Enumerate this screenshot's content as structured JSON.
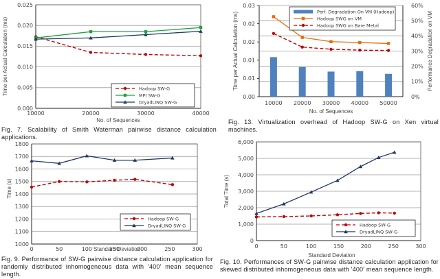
{
  "chart_data": [
    {
      "id": "fig7",
      "type": "line",
      "title": "",
      "xlabel": "No. of Sequences",
      "ylabel": "Time per Actual Calculation (ms)",
      "x": [
        10000,
        20000,
        30000,
        40000
      ],
      "xlim": [
        10000,
        40000
      ],
      "ylim": [
        0,
        0.025
      ],
      "yticks": [
        "0.000",
        "0.005",
        "0.010",
        "0.015",
        "0.020",
        "0.025"
      ],
      "xticks": [
        "10000",
        "20000",
        "30000",
        "40000"
      ],
      "grid": true,
      "legend_position": "bottom-right",
      "series": [
        {
          "name": "Hadoop SW-G",
          "values": [
            0.0173,
            0.0135,
            0.013,
            0.0127
          ],
          "color": "#c00000",
          "dash": true,
          "marker": "circle"
        },
        {
          "name": "MPI SW-G",
          "values": [
            0.017,
            0.0185,
            0.0185,
            0.0195
          ],
          "color": "#1aa33a",
          "dash": false,
          "marker": "square"
        },
        {
          "name": "DryadLINQ SW-G",
          "values": [
            0.0167,
            0.017,
            0.0178,
            0.0186
          ],
          "color": "#1f3864",
          "dash": false,
          "marker": "triangle"
        }
      ],
      "caption": "Fig. 7. Scalability of Smith Waterman pairwise distance calculation applications."
    },
    {
      "id": "fig13",
      "type": "bar",
      "title": "",
      "xlabel": "No. of Sequences",
      "ylabel": "Time per Actual Calculation (ms)",
      "y2label": "Performance Degradation on VM",
      "categories": [
        "10000",
        "20000",
        "30000",
        "40000",
        "50000"
      ],
      "ylim": [
        0,
        0.03
      ],
      "yticks": [
        "0.00",
        "0.01",
        "0.01",
        "0.02",
        "0.02",
        "0.03"
      ],
      "y2lim": [
        0,
        60
      ],
      "y2ticks": [
        "0%",
        "10%",
        "20%",
        "30%",
        "40%",
        "50%",
        "60%"
      ],
      "grid": true,
      "legend_position": "top-right",
      "bars": {
        "name": "Perf. Degradation On VM (Hadoop)",
        "values_percent": [
          26,
          19.5,
          16.5,
          16.8,
          15
        ],
        "color": "#4f81bd"
      },
      "series": [
        {
          "name": "Hadoop SWG on  VM",
          "values": [
            0.0263,
            0.0195,
            0.0181,
            0.0178,
            0.0175
          ],
          "color": "#e36c0a",
          "dash": false,
          "marker": "square"
        },
        {
          "name": "Hadoop SWG on Bare Metal",
          "values": [
            0.0208,
            0.0163,
            0.0156,
            0.0153,
            0.0152
          ],
          "color": "#c00000",
          "dash": true,
          "marker": "circle"
        }
      ],
      "caption": "Fig. 13. Virtualization overhead of Hadoop SW-G on Xen virtual machines."
    },
    {
      "id": "fig9",
      "type": "line",
      "title": "",
      "xlabel": "Standard Deviation",
      "ylabel": "Time (s)",
      "xlim": [
        0,
        300
      ],
      "ylim": [
        1000,
        1800
      ],
      "xticks": [
        "0",
        "50",
        "100",
        "150",
        "200",
        "250",
        "300"
      ],
      "yticks": [
        "1000",
        "1100",
        "1200",
        "1300",
        "1400",
        "1500",
        "1600",
        "1700",
        "1800"
      ],
      "grid": true,
      "legend_position": "bottom-right",
      "series": [
        {
          "name": "Hadoop SW-G",
          "x": [
            0,
            50,
            100,
            150,
            187,
            255
          ],
          "values": [
            1455,
            1500,
            1497,
            1510,
            1517,
            1475
          ],
          "color": "#c00000",
          "dash": true,
          "marker": "circle"
        },
        {
          "name": "DryadLINQ SW-G",
          "x": [
            0,
            50,
            100,
            150,
            187,
            255
          ],
          "values": [
            1665,
            1645,
            1705,
            1670,
            1670,
            1688
          ],
          "color": "#1f3864",
          "dash": false,
          "marker": "triangle"
        }
      ],
      "caption": "Fig. 9. Performance of SW-G pairwise distance calculation application for randomly distributed inhomogeneous data with '400' mean sequence length."
    },
    {
      "id": "fig10",
      "type": "line",
      "title": "",
      "xlabel": "Standard Deviation",
      "ylabel": "Total Time (s)",
      "xlim": [
        0,
        300
      ],
      "ylim": [
        0,
        6000
      ],
      "xticks": [
        "0",
        "50",
        "100",
        "150",
        "200",
        "250",
        "300"
      ],
      "yticks": [
        "0",
        "1,000",
        "2,000",
        "3,000",
        "4,000",
        "5,000",
        "6,000"
      ],
      "grid": true,
      "legend_position": "bottom-right",
      "series": [
        {
          "name": "Hadoop SW-G",
          "x": [
            0,
            50,
            100,
            148,
            190,
            223,
            252
          ],
          "values": [
            1440,
            1460,
            1500,
            1570,
            1650,
            1690,
            1670
          ],
          "color": "#c00000",
          "dash": true,
          "marker": "circle"
        },
        {
          "name": "DryadLINQ SW-G",
          "x": [
            0,
            50,
            100,
            148,
            190,
            223,
            252
          ],
          "values": [
            1650,
            2230,
            2950,
            3660,
            4500,
            5050,
            5370
          ],
          "color": "#1f3864",
          "dash": false,
          "marker": "triangle"
        }
      ],
      "caption": "Fig. 10. Performances of SW-G pairwise distance calculation application for skewed distributed inhomogeneous data with '400' mean sequence length."
    }
  ]
}
